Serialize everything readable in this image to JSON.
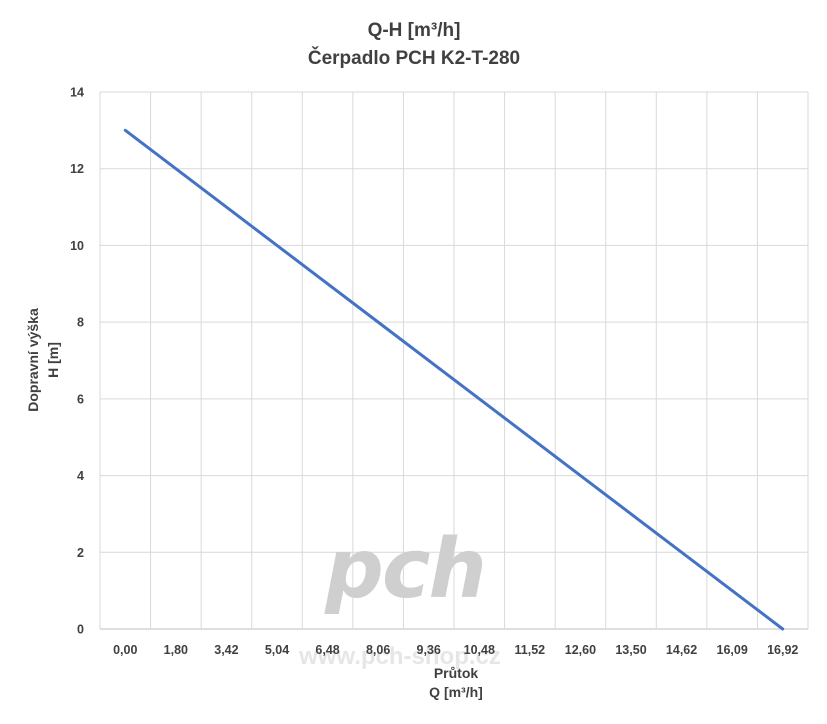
{
  "watermark": {
    "logo": "pch",
    "url": "www.pch-shop.cz"
  },
  "chart_data": {
    "type": "line",
    "title": "Q-H  [m³/h]",
    "subtitle": "Čerpadlo PCH K2-T-280",
    "xlabel": "Průtok",
    "xlabel_unit": "Q [m³/h]",
    "ylabel": "Dopravní výška",
    "ylabel_unit": "H [m]",
    "categories": [
      "0,00",
      "1,80",
      "3,42",
      "5,04",
      "6,48",
      "8,06",
      "9,36",
      "10,48",
      "11,52",
      "12,60",
      "13,50",
      "14,62",
      "16,09",
      "16,92"
    ],
    "ylim": [
      0,
      14
    ],
    "yticks": [
      "0",
      "2",
      "4",
      "6",
      "8",
      "10",
      "12",
      "14"
    ],
    "grid": true,
    "series": [
      {
        "color": "#4472c4",
        "x": [
          0.0,
          16.92
        ],
        "values": [
          13,
          0
        ]
      }
    ]
  }
}
